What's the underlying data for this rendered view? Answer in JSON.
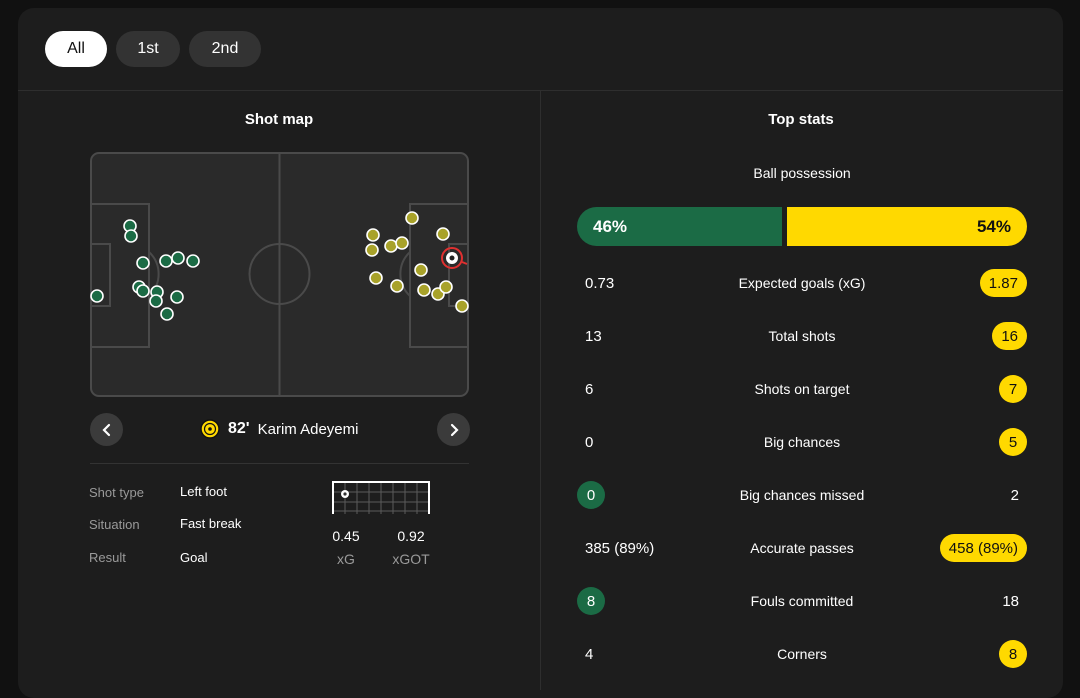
{
  "tabs": [
    {
      "label": "All",
      "active": true
    },
    {
      "label": "1st",
      "active": false
    },
    {
      "label": "2nd",
      "active": false
    }
  ],
  "shot_map": {
    "title": "Shot map",
    "selected_shot": {
      "minute": "82'",
      "player": "Karim Adeyemi",
      "team_badge": "bvb-badge-icon",
      "details": [
        {
          "label": "Shot type",
          "value": "Left foot"
        },
        {
          "label": "Situation",
          "value": "Fast break"
        },
        {
          "label": "Result",
          "value": "Goal"
        }
      ],
      "xg": "0.45",
      "xg_label": "xG",
      "xgot": "0.92",
      "xgot_label": "xGOT"
    },
    "home_color": "#1b6b45",
    "away_color": "#a8a22a"
  },
  "top_stats": {
    "title": "Top stats",
    "possession": {
      "label": "Ball possession",
      "home": "46%",
      "away": "54%",
      "home_value": 46,
      "away_value": 54
    },
    "rows": [
      {
        "name": "Expected goals (xG)",
        "home": "0.73",
        "away": "1.87",
        "highlight": "away"
      },
      {
        "name": "Total shots",
        "home": "13",
        "away": "16",
        "highlight": "away"
      },
      {
        "name": "Shots on target",
        "home": "6",
        "away": "7",
        "highlight": "away"
      },
      {
        "name": "Big chances",
        "home": "0",
        "away": "5",
        "highlight": "away"
      },
      {
        "name": "Big chances missed",
        "home": "0",
        "away": "2",
        "highlight": "home"
      },
      {
        "name": "Accurate passes",
        "home": "385 (89%)",
        "away": "458 (89%)",
        "highlight": "away"
      },
      {
        "name": "Fouls committed",
        "home": "8",
        "away": "18",
        "highlight": "home"
      },
      {
        "name": "Corners",
        "home": "4",
        "away": "8",
        "highlight": "away"
      }
    ],
    "home_color": "#1b6b45",
    "away_color": "#ffd900"
  }
}
